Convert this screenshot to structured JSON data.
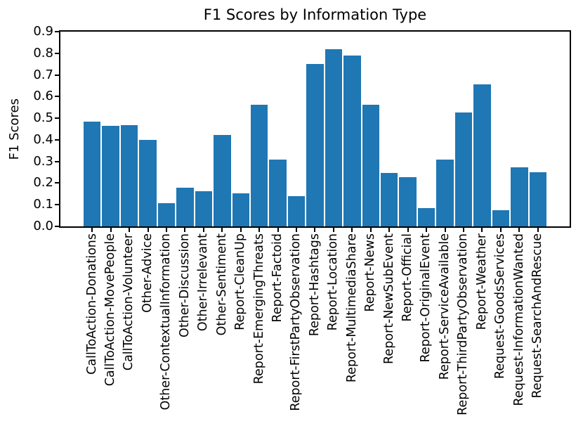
{
  "chart_data": {
    "type": "bar",
    "title": "F1 Scores by Information Type",
    "xlabel": "",
    "ylabel": "F1 Scores",
    "ylim": [
      0.0,
      0.9
    ],
    "grid": false,
    "legend": null,
    "y_ticks": [
      "0.0",
      "0.1",
      "0.2",
      "0.3",
      "0.4",
      "0.5",
      "0.6",
      "0.7",
      "0.8",
      "0.9"
    ],
    "bar_color": "#1f77b4",
    "axis_color": "#000000",
    "text_color": "#000000",
    "categories": [
      "CallToAction-Donations",
      "CallToAction-MovePeople",
      "CallToAction-Volunteer",
      "Other-Advice",
      "Other-ContextualInformation",
      "Other-Discussion",
      "Other-Irrelevant",
      "Other-Sentiment",
      "Report-CleanUp",
      "Report-EmergingThreats",
      "Report-Factoid",
      "Report-FirstPartyObservation",
      "Report-Hashtags",
      "Report-Location",
      "Report-MultimediaShare",
      "Report-News",
      "Report-NewSubEvent",
      "Report-Official",
      "Report-OriginalEvent",
      "Report-ServiceAvailable",
      "Report-ThirdPartyObservation",
      "Report-Weather",
      "Request-GoodsServices",
      "Request-InformationWanted",
      "Request-SearchAndRescue"
    ],
    "values": [
      0.485,
      0.465,
      0.468,
      0.401,
      0.107,
      0.18,
      0.164,
      0.423,
      0.154,
      0.562,
      0.31,
      0.14,
      0.752,
      0.82,
      0.79,
      0.562,
      0.248,
      0.229,
      0.086,
      0.308,
      0.527,
      0.657,
      0.075,
      0.272,
      0.25
    ]
  }
}
